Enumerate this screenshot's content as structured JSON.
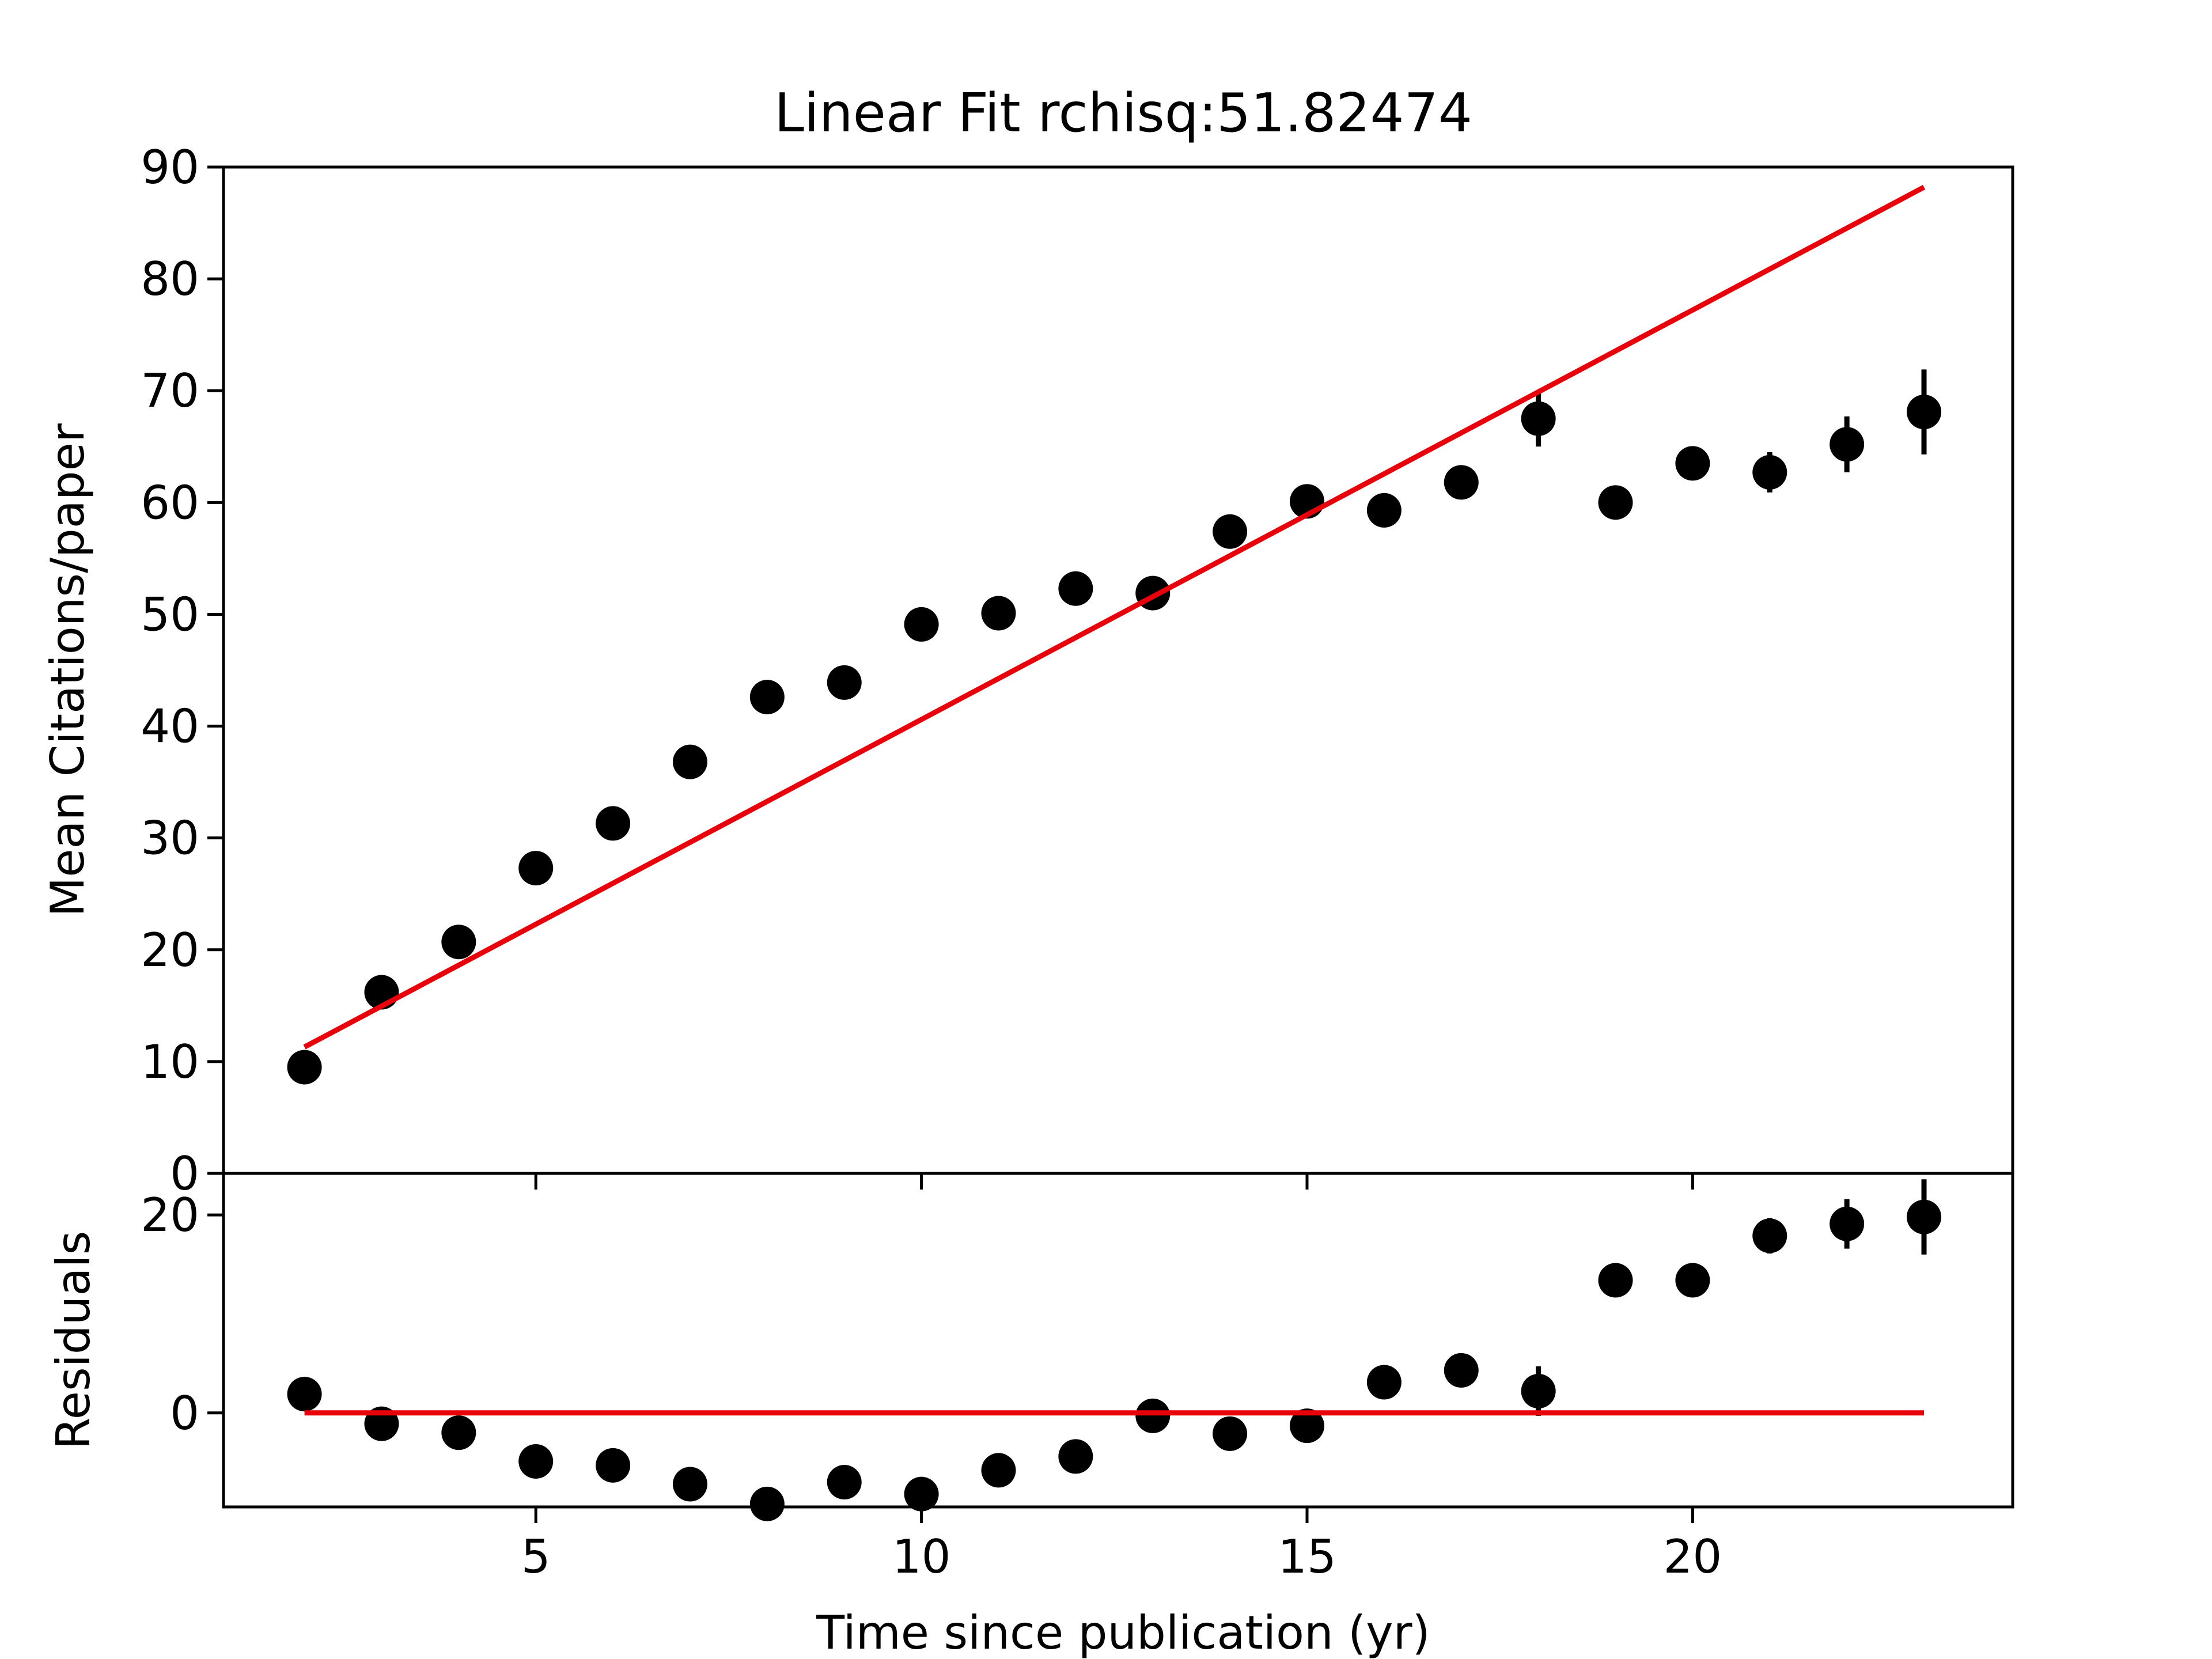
{
  "chart_data": [
    {
      "type": "scatter",
      "title": "Linear Fit rchisq:51.82474",
      "xlabel": "",
      "ylabel": "Mean Citations/paper",
      "xlim": [
        0.95,
        24.15
      ],
      "ylim": [
        0,
        90
      ],
      "xticks": [
        5,
        10,
        15,
        20
      ],
      "yticks": [
        0,
        10,
        20,
        30,
        40,
        50,
        60,
        70,
        80,
        90
      ],
      "show_x_ticklabels": false,
      "series": [
        {
          "name": "",
          "kind": "points",
          "color": "#000000",
          "x": [
            2,
            3,
            4,
            5,
            6,
            7,
            8,
            9,
            10,
            11,
            12,
            13,
            14,
            15,
            16,
            17,
            18,
            19,
            20,
            21,
            22,
            23
          ],
          "y": [
            9.5,
            16.2,
            20.7,
            27.3,
            31.3,
            36.8,
            42.6,
            43.9,
            49.1,
            50.1,
            52.3,
            51.9,
            57.4,
            60.1,
            59.3,
            61.8,
            67.5,
            60.0,
            63.5,
            62.7,
            65.2,
            68.1
          ],
          "yerr": [
            0.6,
            0.5,
            0.6,
            0.5,
            0.6,
            0.6,
            0.6,
            0.6,
            0.6,
            0.6,
            0.6,
            0.6,
            0.7,
            0.7,
            0.8,
            0.8,
            2.5,
            0.8,
            1.3,
            1.8,
            2.5,
            3.8
          ]
        },
        {
          "name": "",
          "kind": "line",
          "color": "#e8000b",
          "x": [
            2,
            23
          ],
          "y": [
            11.3,
            88.2
          ]
        }
      ]
    },
    {
      "type": "scatter",
      "title": "",
      "xlabel": "Time since publication (yr)",
      "ylabel": "Residuals",
      "xlim": [
        0.95,
        24.15
      ],
      "ylim": [
        -9.5,
        24.2
      ],
      "xticks": [
        5,
        10,
        15,
        20
      ],
      "yticks": [
        0,
        20
      ],
      "show_x_ticklabels": true,
      "series": [
        {
          "name": "",
          "kind": "points",
          "color": "#000000",
          "x": [
            2,
            3,
            4,
            5,
            6,
            7,
            8,
            9,
            10,
            11,
            12,
            13,
            14,
            15,
            16,
            17,
            18,
            19,
            20,
            21,
            22,
            23
          ],
          "y": [
            1.9,
            -1.1,
            -2.0,
            -4.9,
            -5.3,
            -7.2,
            -9.2,
            -7.0,
            -8.2,
            -5.8,
            -4.4,
            -0.3,
            -2.1,
            -1.3,
            3.1,
            4.3,
            2.2,
            13.4,
            13.4,
            17.9,
            19.1,
            19.8
          ],
          "yerr": [
            0.6,
            0.5,
            0.6,
            0.5,
            0.6,
            0.6,
            0.6,
            0.6,
            0.6,
            0.6,
            0.6,
            0.6,
            0.7,
            0.7,
            0.8,
            0.8,
            2.5,
            0.8,
            1.3,
            1.8,
            2.5,
            3.8
          ]
        },
        {
          "name": "",
          "kind": "line",
          "color": "#e8000b",
          "x": [
            2,
            23
          ],
          "y": [
            0,
            0
          ]
        }
      ]
    }
  ]
}
